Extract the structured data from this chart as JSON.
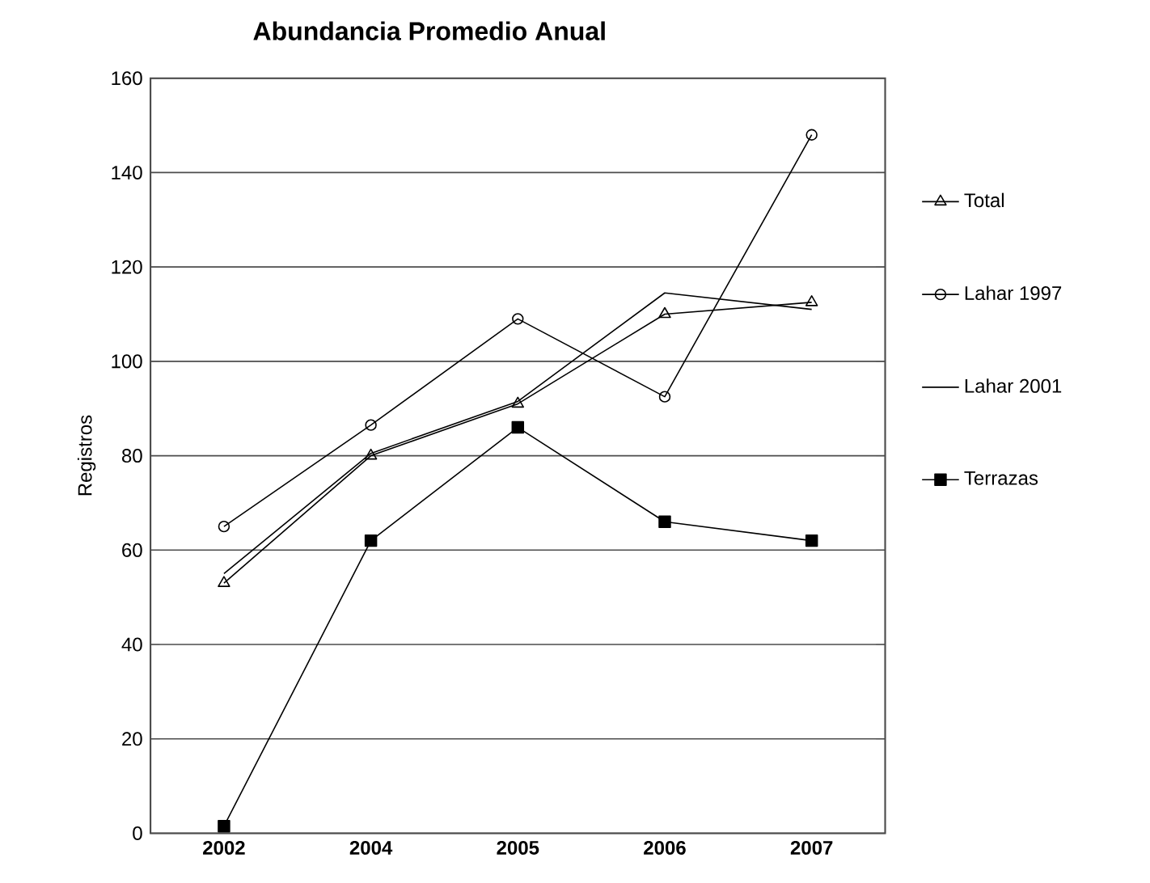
{
  "chart_data": {
    "type": "line",
    "title": "Abundancia Promedio Anual",
    "ylabel": "Registros",
    "categories": [
      "2002",
      "2004",
      "2005",
      "2006",
      "2007"
    ],
    "series": [
      {
        "name": "Total",
        "color": "#000000",
        "marker": "triangle",
        "values": [
          53,
          80,
          91,
          110,
          112.5
        ]
      },
      {
        "name": "Lahar 1997",
        "color": "#000000",
        "marker": "circle",
        "values": [
          65,
          86.5,
          109,
          92.5,
          148
        ]
      },
      {
        "name": "Lahar 2001",
        "color": "#000000",
        "marker": "none",
        "values": [
          55,
          80.5,
          91.5,
          114.5,
          111
        ]
      },
      {
        "name": "Terrazas",
        "color": "#000000",
        "marker": "square",
        "values": [
          1.5,
          62,
          86,
          66,
          62
        ]
      }
    ],
    "ylim": [
      0,
      160
    ],
    "yticks": [
      0,
      20,
      40,
      60,
      80,
      100,
      120,
      140,
      160
    ],
    "grid": "y",
    "legend": "right",
    "line_style": "solid"
  }
}
